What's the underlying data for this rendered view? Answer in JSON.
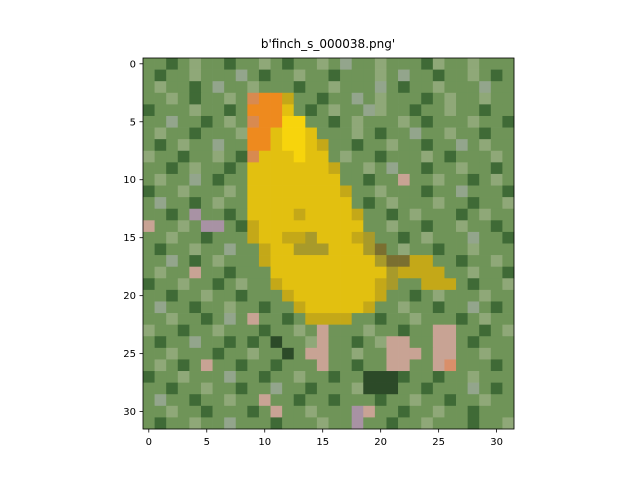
{
  "chart_data": {
    "type": "heatmap",
    "title": "b'finch_s_000038.png'",
    "xlabel": "",
    "ylabel": "",
    "grid": false,
    "image_size": [
      32,
      32
    ],
    "xlim": [
      -0.5,
      31.5
    ],
    "ylim": [
      31.5,
      -0.5
    ],
    "x_ticks": [
      0,
      5,
      10,
      15,
      20,
      25,
      30
    ],
    "y_ticks": [
      0,
      5,
      10,
      15,
      20,
      25,
      30
    ],
    "palette": {
      "G": "#6f9458",
      "D": "#3f6a36",
      "K": "#2c4a28",
      "L": "#8fa878",
      "C": "#93a58c",
      "P": "#c8a394",
      "V": "#a892a4",
      "Y": "#e2c010",
      "B": "#f7d40c",
      "M": "#c4a818",
      "O": "#ee8a1e",
      "R": "#d88a50",
      "S": "#a89a2a",
      "E": "#7a6f30",
      "T": "#d98f6a"
    },
    "pixel_rows": [
      "GGDGLGGDGGLGDGGLGCGGLGGGDLGGLGGG",
      "GDGGLGGGCGDGGLGGDGGGLGCGGDGGLGDG",
      "GLGGDGCGGLGGGDGGLGGGCGDGGLGGGCGG",
      "GGLGDGGLGROOMGGDGGCGLGGGDGLGGLGG",
      "DGGGLGGDGOOOYGDGLGGCLGGDGGLGGDGG",
      "GGCGGDGLGROOBBGGDGLGGGLGDGGGLGGD",
      "GLGGDGGGLOOYBBYGGGLGDGGCGGLGGDGG",
      "GDGLGGCGGOOYBBYMGGDGGLGGDGGCGLGG",
      "LGGDGGLGDRYYYBYYGLGGDGGGLGDGGGLG",
      "GGDGLGGDGYYYYYYYMGGLGCGGDGGLGGDG",
      "GLGGCGDGGYYYYYYYYGGDGGPGGLGGDGLG",
      "DGGLGGGLGYYYYYYYYMGGLGGGDGGCGGGD",
      "GCGGDGLGGYYYYYYYYYGDGLGGGLGGDGGL",
      "GGDGVGGDGYYYYMYYYYMGGDGLGGGDGLGG",
      "PGGLGVVGDMYYYYYYYYYGGLGGDGGLGGDG",
      "GGLGGDGGGMYYMMSYYYMSGGDGLGGGCGGD",
      "GDGGLGGCGGMYYSSSYYYSEGLGGDGGLGGG",
      "GGCGDGLGGGMYYYYYYYYYSEEMMGGDGGLG",
      "GLGGPGGDGGGYYYYYYYYYYSMMMMGGLGGD",
      "DGGLGGDGLGGMYYYYYYYYMSGGMMMGDGGL",
      "GGDGGLGGDGGGMYYYYYYYMGGDGLGGGLGG",
      "GCGGDGGLGGDGGMYYYYYMGGLGGDGGCGDG",
      "GGLGGDGCGPGGDGMMMMGGDGGLGGGDGLGG",
      "LGGDGGLGGGDGGLGPGGGLGGDGGPPGGDGL",
      "GDGGCGGDGDGKGGLPGGDGLPPGGPPGDGGG",
      "GGLGGGDGGLGGKGPPGGLGGPPPGPPGGLGG",
      "GLGDGPGGDGGDGGGPGGDGGPPGGPTGGGDG",
      "DGGLGGGCGGDGGLGGDGGKKKDGGDGGLGGG",
      "GGDGGLGGDGGCGGDGGGLKKKGGDGGGCGDG",
      "GCGGDGGLGGPGGDGGDGGGDGGLGGDGGLGG",
      "GGLGGDGGGDGPGGLGGGVPGGDGGLGGDGGG",
      "GDGGLGGCGGGDGGGLGGVGGDGGLGGGDGGL"
    ]
  }
}
